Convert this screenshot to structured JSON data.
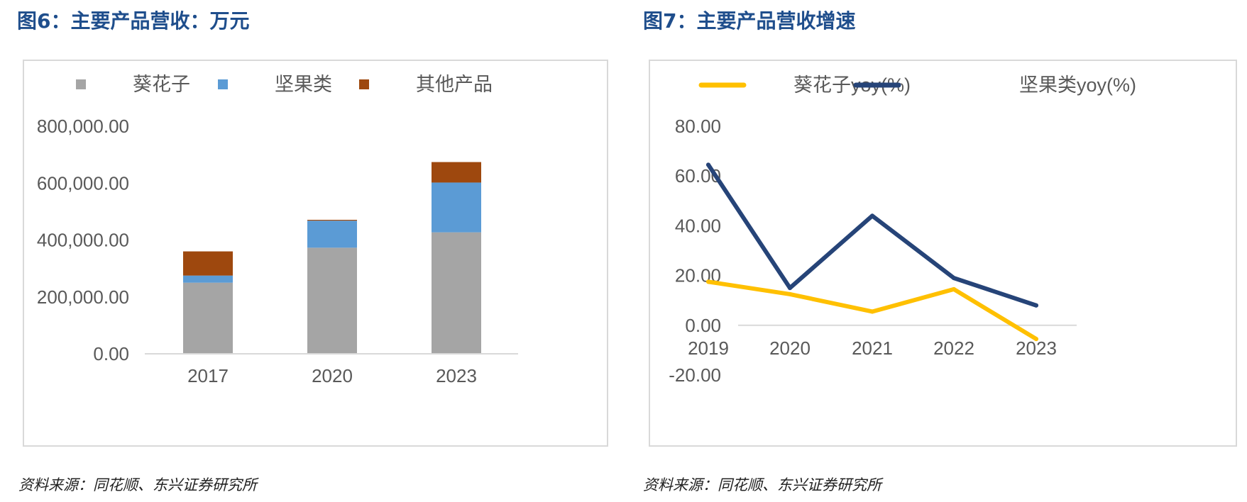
{
  "figures": [
    {
      "title": "图6：主要产品营收：万元",
      "source": "资料来源：同花顺、东兴证券研究所"
    },
    {
      "title": "图7：主要产品营收增速",
      "source": "资料来源：同花顺、东兴证券研究所"
    }
  ],
  "chart_data": [
    {
      "type": "bar",
      "stacked": true,
      "categories": [
        "2017",
        "2020",
        "2023"
      ],
      "series": [
        {
          "name": "葵花子",
          "color": "#a5a5a5",
          "values": [
            250000,
            373000,
            427000
          ]
        },
        {
          "name": "坚果类",
          "color": "#5b9bd5",
          "values": [
            25000,
            95000,
            175000
          ]
        },
        {
          "name": "其他产品",
          "color": "#9e480e",
          "values": [
            85000,
            3000,
            72000
          ]
        }
      ],
      "ylim": [
        0,
        800000
      ],
      "yticks": [
        0,
        200000,
        400000,
        600000,
        800000
      ],
      "ytick_labels": [
        "0.00",
        "200,000.00",
        "400,000.00",
        "600,000.00",
        "800,000.00"
      ],
      "legend": "top",
      "grid": false
    },
    {
      "type": "line",
      "categories": [
        "2019",
        "2020",
        "2021",
        "2022",
        "2023"
      ],
      "series": [
        {
          "name": "葵花子yoy(%)",
          "color": "#ffc000",
          "values": [
            17.5,
            12.5,
            5.5,
            14.5,
            -5.5
          ]
        },
        {
          "name": "坚果类yoy(%)",
          "color": "#264478",
          "values": [
            64.5,
            15,
            44,
            19,
            8
          ]
        }
      ],
      "ylim": [
        -20,
        80
      ],
      "yticks": [
        -20,
        0,
        20,
        40,
        60,
        80
      ],
      "ytick_labels": [
        "-20.00",
        "0.00",
        "20.00",
        "40.00",
        "60.00",
        "80.00"
      ],
      "legend": "top",
      "grid": false
    }
  ]
}
